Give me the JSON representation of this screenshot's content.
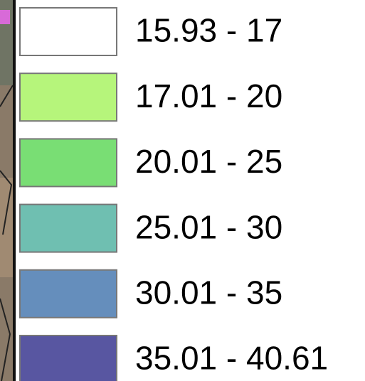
{
  "legend": {
    "items": [
      {
        "label": "15.93 - 17",
        "color": "#ffffff"
      },
      {
        "label": "17.01 - 20",
        "color": "#b6f57b"
      },
      {
        "label": "20.01 - 25",
        "color": "#79de74"
      },
      {
        "label": "25.01 - 30",
        "color": "#6fbfb1"
      },
      {
        "label": "30.01 - 35",
        "color": "#658ebc"
      },
      {
        "label": "35.01 - 40.61",
        "color": "#5856a1"
      }
    ]
  }
}
